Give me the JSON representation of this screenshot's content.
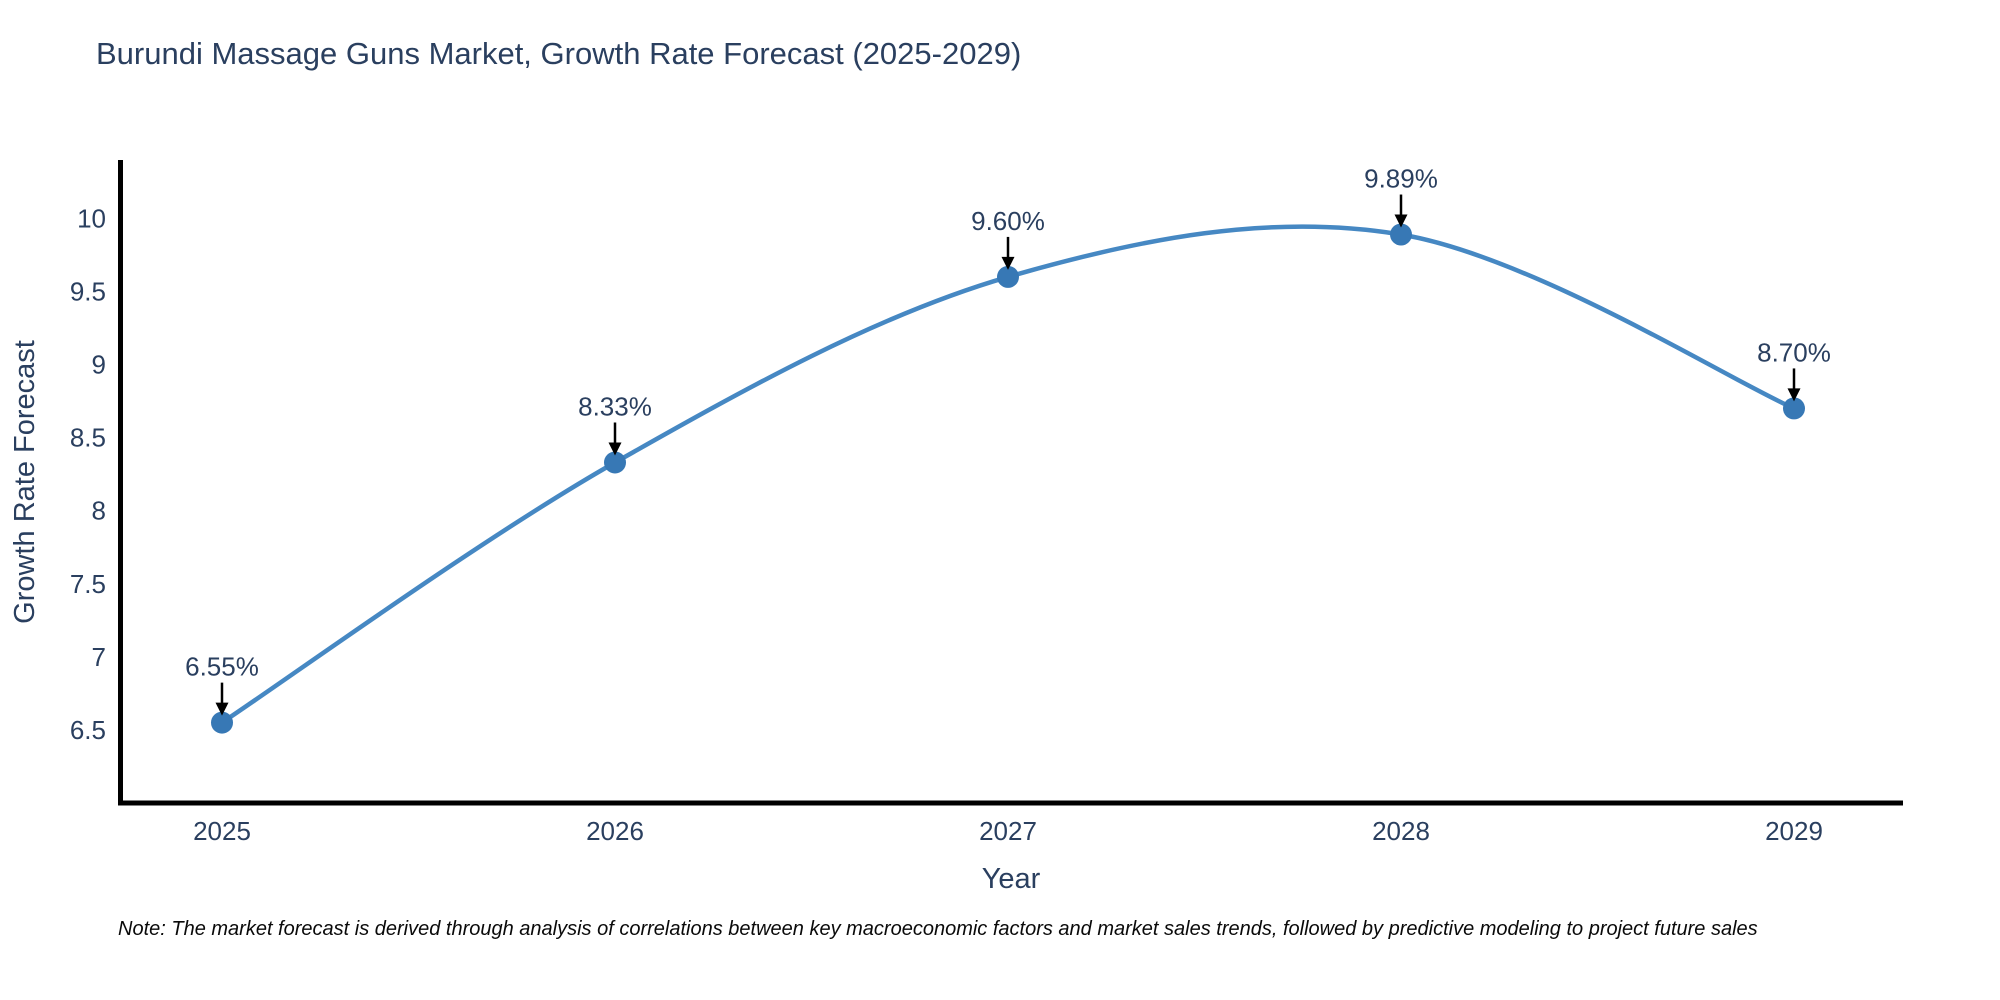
{
  "chart_data": {
    "type": "line",
    "title": "Burundi Massage Guns Market, Growth Rate Forecast (2025-2029)",
    "xlabel": "Year",
    "ylabel": "Growth Rate Forecast",
    "categories": [
      "2025",
      "2026",
      "2027",
      "2028",
      "2029"
    ],
    "values": [
      6.55,
      8.33,
      9.6,
      9.89,
      8.7
    ],
    "point_labels": [
      "6.55%",
      "8.33%",
      "9.60%",
      "9.89%",
      "8.70%"
    ],
    "yticks": [
      6.5,
      7,
      7.5,
      8,
      8.5,
      9,
      9.5,
      10
    ],
    "ylim": [
      6.0,
      10.4
    ],
    "line_shape": "spline",
    "grid": false,
    "legend": "none",
    "marker": "circle",
    "annotation_arrows": true,
    "colors": {
      "line": "#4688c3",
      "marker": "#3778b5",
      "axis": "#000000",
      "text": "#2a3f5f",
      "arrow": "#000000",
      "background": "#ffffff"
    }
  },
  "note": "Note: The market forecast is derived through analysis of correlations between key macroeconomic factors and market sales trends, followed by predictive modeling to project future sales"
}
